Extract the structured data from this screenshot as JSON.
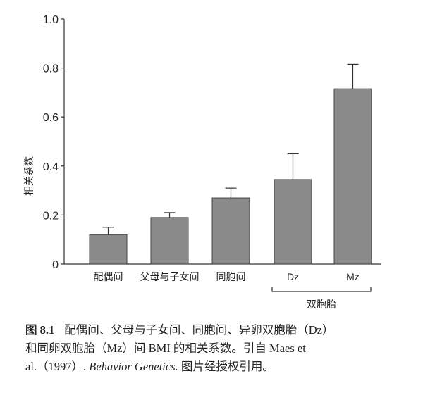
{
  "chart_data": {
    "type": "bar",
    "title": "",
    "xlabel": "",
    "ylabel": "相关系数",
    "ylim": [
      0,
      1.0
    ],
    "yticks": [
      "0",
      "0.2",
      "0.4",
      "0.6",
      "0.8",
      "1.0"
    ],
    "grid": false,
    "categories": [
      "配偶间",
      "父母与子女间",
      "同胞间",
      "Dz",
      "Mz"
    ],
    "values": [
      0.12,
      0.19,
      0.27,
      0.345,
      0.715
    ],
    "error_upper": [
      0.15,
      0.21,
      0.31,
      0.45,
      0.815
    ],
    "group_bracket": {
      "label": "双胞胎",
      "categories": [
        "Dz",
        "Mz"
      ]
    },
    "bar_color": "#8a8a8a"
  },
  "caption": {
    "fig_label": "图 8.1",
    "line1": "配偶间、父母与子女间、同胞间、异卵双胞胎（Dz）",
    "line2": "和同卵双胞胎（Mz）间 BMI 的相关系数。引自 Maes et",
    "line3_pre": "al.（1997）. ",
    "line3_journal": "Behavior Genetics.",
    "line3_post": " 图片经授权引用。"
  }
}
